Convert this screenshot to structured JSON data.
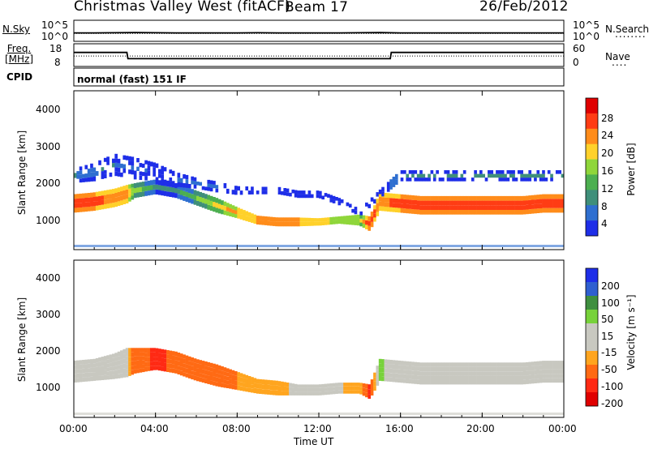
{
  "header": {
    "station": "Christmas Valley West (fitACF)",
    "beam": "Beam 17",
    "date": "26/Feb/2012",
    "cpid_label": "CPID",
    "cpid_value": "normal (fast) 151 IF"
  },
  "colors": {
    "noise_line": "#000000",
    "power_scale": [
      "#1e2ee8",
      "#2f6fd0",
      "#3f8f7a",
      "#4caf50",
      "#8fd63a",
      "#ffd12a",
      "#ff8c1a",
      "#ff3c14",
      "#e00000"
    ],
    "velocity_scale": [
      "#1e2ee8",
      "#2f5fd0",
      "#3f8f3f",
      "#77d23a",
      "#c8c8c0",
      "#c8c8c0",
      "#ffa51f",
      "#ff6a14",
      "#ff2a14",
      "#e00000"
    ]
  },
  "chart_data": [
    {
      "type": "line",
      "title": "",
      "left_label": "N.Sky",
      "right_label": "N.Search",
      "left_ticks": [
        "10^5",
        "10^0"
      ],
      "right_ticks": [
        "10^5",
        "10^0"
      ],
      "x_range_hours": [
        0,
        24
      ],
      "series": [
        {
          "name": "N.Sky",
          "style": "solid",
          "x": [
            0,
            1,
            2,
            3,
            4,
            5,
            6,
            7,
            8,
            9,
            10,
            11,
            12,
            13,
            14,
            15,
            16,
            17,
            18,
            19,
            20,
            21,
            22,
            23,
            24
          ],
          "y_log10": [
            1.3,
            1.3,
            1.35,
            1.4,
            1.35,
            1.3,
            1.3,
            1.3,
            1.3,
            1.35,
            1.3,
            1.3,
            1.3,
            1.3,
            1.35,
            1.4,
            1.3,
            1.3,
            1.3,
            1.3,
            1.3,
            1.3,
            1.3,
            1.3,
            1.3
          ]
        },
        {
          "name": "N.Search",
          "style": "dotted",
          "x": [
            0,
            6,
            12,
            18,
            24
          ],
          "y_log10": [
            1.1,
            1.1,
            1.1,
            1.1,
            1.1
          ]
        }
      ]
    },
    {
      "type": "line",
      "left_label": "Freq.\n[MHz]",
      "right_label": "Nave",
      "left_ticks": [
        "18",
        "8"
      ],
      "right_ticks": [
        "60",
        "0"
      ],
      "y_range_left": [
        8,
        18
      ],
      "x_range_hours": [
        0,
        24
      ],
      "series": [
        {
          "name": "Freq.",
          "style": "solid",
          "x": [
            0,
            2.6,
            2.65,
            15.5,
            15.55,
            24
          ],
          "y": [
            14.5,
            14.5,
            11,
            11,
            14.5,
            14.5
          ]
        },
        {
          "name": "Nave",
          "style": "dotted",
          "x": [
            0,
            24
          ],
          "y": [
            12.5,
            12.5
          ]
        }
      ]
    },
    {
      "type": "heatmap",
      "quantity": "Power",
      "ylabel": "Slant Range [km]",
      "colorbar_label": "Power [dB]",
      "colorbar_ticks": [
        "28",
        "24",
        "20",
        "16",
        "12",
        "8",
        "4"
      ],
      "y_ticks": [
        "4000",
        "3000",
        "2000",
        "1000"
      ],
      "y_range_km": [
        200,
        4500
      ],
      "x_range_hours": [
        0,
        24
      ],
      "bands": [
        {
          "x": [
            0,
            1,
            2,
            2.6,
            3,
            4,
            5,
            6,
            7,
            8,
            9,
            10,
            11,
            12,
            13,
            14,
            14.5,
            15,
            16,
            17,
            18,
            19,
            20,
            21,
            22,
            23,
            24
          ],
          "center": [
            1450,
            1500,
            1600,
            1700,
            1800,
            1900,
            1800,
            1600,
            1400,
            1200,
            1000,
            950,
            950,
            950,
            1000,
            1000,
            900,
            1500,
            1450,
            1400,
            1400,
            1400,
            1400,
            1400,
            1400,
            1450,
            1450
          ],
          "halfwidth": [
            250,
            250,
            250,
            250,
            200,
            200,
            200,
            200,
            200,
            150,
            120,
            120,
            120,
            100,
            100,
            150,
            200,
            250,
            250,
            250,
            250,
            250,
            250,
            250,
            250,
            250,
            250
          ],
          "value_dB": [
            26,
            26,
            24,
            24,
            16,
            10,
            10,
            14,
            18,
            22,
            24,
            24,
            24,
            22,
            20,
            18,
            26,
            24,
            26,
            26,
            26,
            26,
            26,
            26,
            26,
            26,
            26
          ]
        },
        {
          "x": [
            0,
            1,
            2,
            3,
            4,
            5,
            6,
            7,
            8,
            9,
            10,
            11,
            12,
            13,
            14,
            16,
            18,
            20,
            22,
            24
          ],
          "center": [
            2200,
            2300,
            2500,
            2400,
            2300,
            2100,
            2000,
            1900,
            1800,
            1800,
            1800,
            1700,
            1700,
            1500,
            1200,
            2200,
            2200,
            2200,
            2200,
            2200
          ],
          "halfwidth": [
            200,
            250,
            300,
            300,
            250,
            200,
            150,
            150,
            120,
            100,
            100,
            100,
            100,
            100,
            100,
            150,
            150,
            150,
            150,
            150
          ],
          "value_dB": [
            10,
            8,
            8,
            6,
            6,
            6,
            6,
            6,
            6,
            6,
            6,
            6,
            6,
            6,
            6,
            10,
            8,
            8,
            8,
            8
          ]
        }
      ]
    },
    {
      "type": "heatmap",
      "quantity": "Velocity",
      "ylabel": "Slant Range [km]",
      "xlabel": "Time UT",
      "colorbar_label": "Velocity [m s⁻¹]",
      "colorbar_ticks": [
        "200",
        "100",
        "50",
        "15",
        "-15",
        "-50",
        "-100",
        "-200"
      ],
      "x_ticks": [
        "00:00",
        "04:00",
        "08:00",
        "12:00",
        "16:00",
        "20:00",
        "00:00"
      ],
      "y_ticks": [
        "4000",
        "3000",
        "2000",
        "1000"
      ],
      "y_range_km": [
        200,
        4500
      ],
      "x_range_hours": [
        0,
        24
      ],
      "bands": [
        {
          "x": [
            0,
            1,
            2,
            2.6,
            3,
            4,
            5,
            6,
            7,
            8,
            9,
            10,
            11,
            12,
            13,
            14,
            14.5,
            15,
            16,
            17,
            18,
            19,
            20,
            21,
            22,
            23,
            24
          ],
          "center": [
            1450,
            1500,
            1600,
            1700,
            1750,
            1800,
            1700,
            1500,
            1350,
            1200,
            1050,
            1000,
            950,
            950,
            1000,
            1000,
            900,
            1500,
            1450,
            1400,
            1400,
            1400,
            1400,
            1400,
            1400,
            1450,
            1450
          ],
          "halfwidth": [
            300,
            300,
            350,
            400,
            350,
            300,
            300,
            300,
            300,
            250,
            200,
            200,
            150,
            150,
            150,
            150,
            200,
            300,
            300,
            300,
            300,
            300,
            300,
            300,
            300,
            300,
            300
          ],
          "value_ms": [
            0,
            0,
            0,
            -10,
            -60,
            -80,
            -70,
            -60,
            -50,
            -40,
            -30,
            -20,
            -10,
            0,
            -10,
            -30,
            -80,
            20,
            0,
            0,
            0,
            0,
            0,
            0,
            0,
            0,
            0
          ]
        }
      ]
    }
  ]
}
